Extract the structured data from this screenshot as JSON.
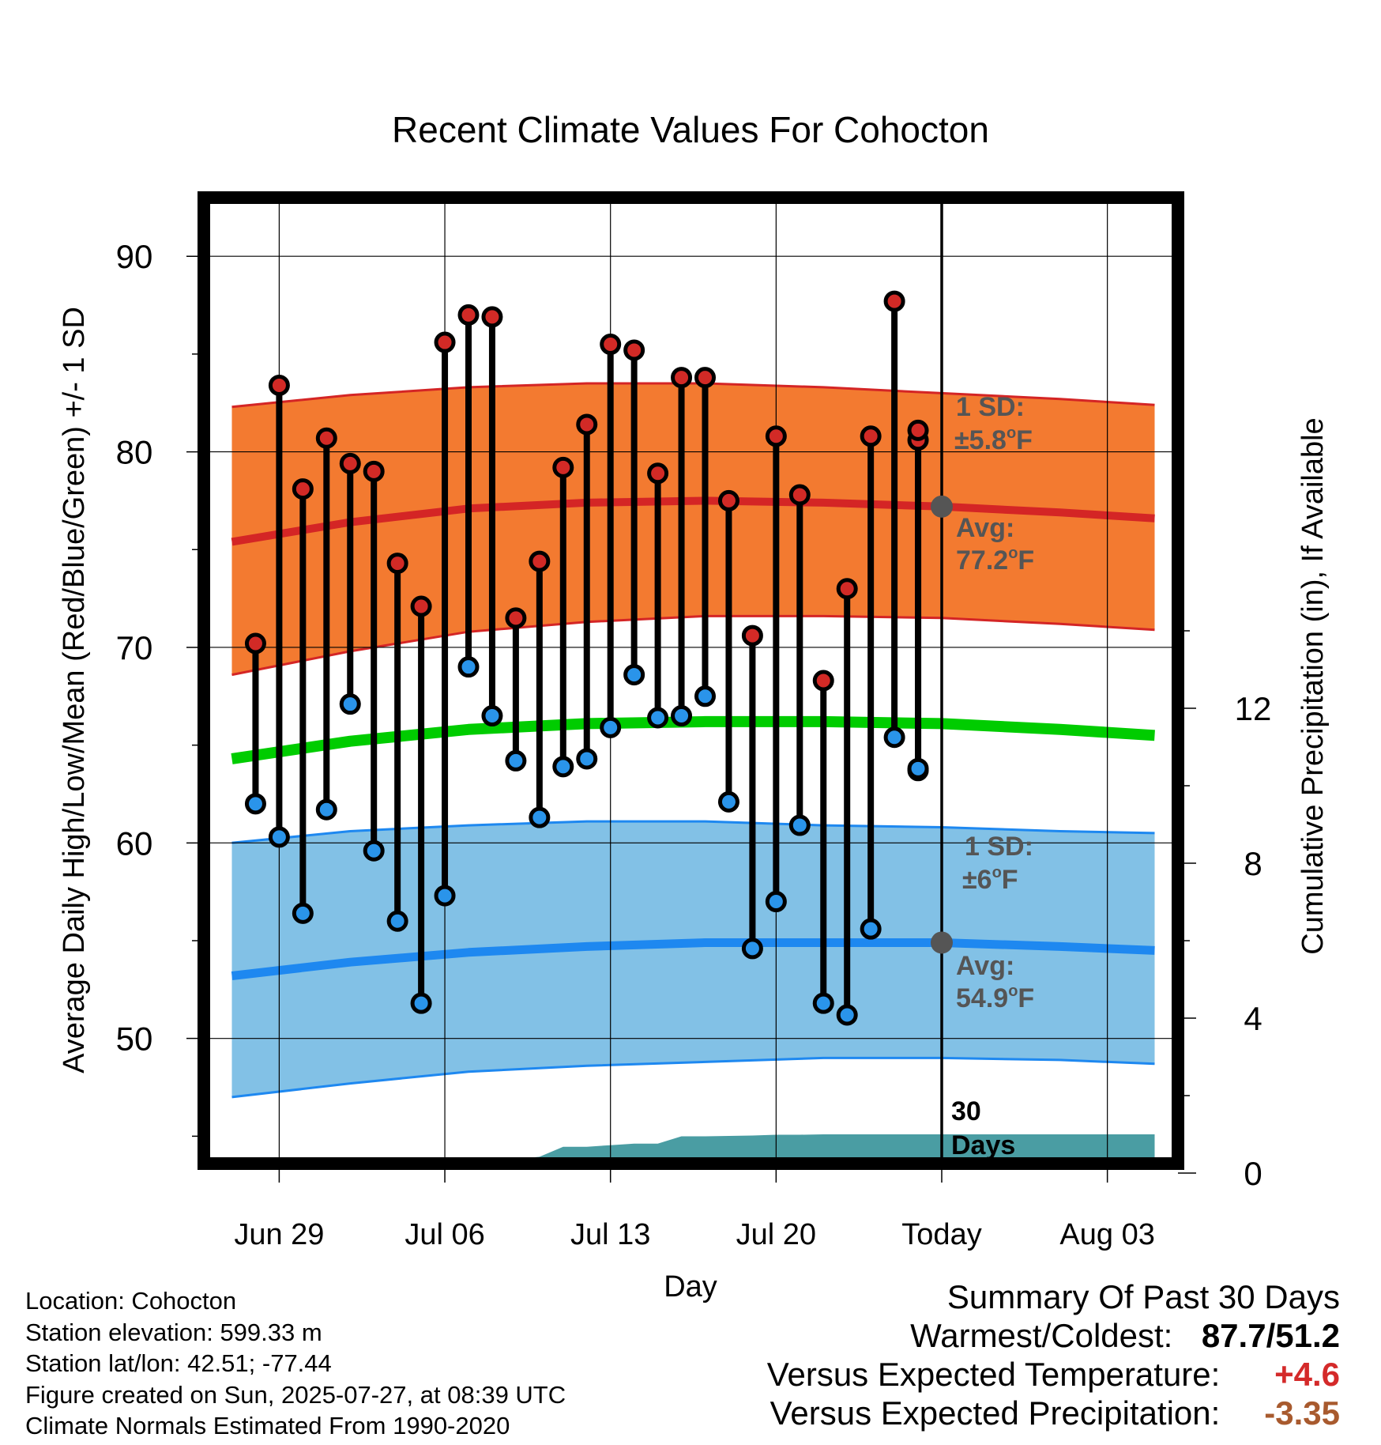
{
  "chart_data": {
    "type": "line",
    "title": "Recent Climate Values For Cohocton",
    "xlabel": "Day",
    "ylabel": "Average Daily High/Low/Mean (Red/Blue/Green) +/- 1 SD",
    "y2label": "Cumulative Precipitation (in), If Available",
    "ylim": [
      43.6,
      93
    ],
    "y2lim": [
      0,
      14
    ],
    "x_ticks": [
      "Jun 29",
      "Jul 06",
      "Jul 13",
      "Jul 20",
      "Today",
      "Aug 03"
    ],
    "y_ticks": [
      50,
      60,
      70,
      80,
      90
    ],
    "y2_ticks": [
      0,
      4,
      8,
      12
    ],
    "grid": true,
    "days_offset": [
      -29,
      -28,
      -27,
      -26,
      -25,
      -24,
      -23,
      -22,
      -21,
      -20,
      -19,
      -18,
      -17,
      -16,
      -15,
      -14,
      -13,
      -12,
      -11,
      -10,
      -9,
      -8,
      -7,
      -6,
      -5,
      -4,
      -3,
      -2,
      -1
    ],
    "observed_high": [
      70.2,
      83.4,
      78.1,
      80.7,
      79.4,
      79.0,
      74.3,
      72.1,
      85.6,
      87.0,
      86.9,
      71.5,
      74.4,
      79.2,
      81.4,
      85.5,
      85.2,
      78.9,
      83.8,
      83.8,
      77.5,
      70.6,
      80.8,
      77.8,
      68.3,
      73.0,
      80.8,
      87.7,
      80.6
    ],
    "observed_low": [
      62.0,
      60.3,
      56.4,
      61.7,
      67.1,
      59.6,
      56.0,
      51.8,
      57.3,
      69.0,
      66.5,
      64.2,
      61.3,
      63.9,
      64.3,
      65.9,
      68.6,
      66.4,
      66.5,
      67.5,
      62.1,
      54.6,
      57.0,
      60.9,
      51.8,
      51.2,
      55.6,
      65.4,
      63.7
    ],
    "observed_high_last": 81.1,
    "observed_low_last": 63.8,
    "normals_x": [
      -30,
      -25,
      -20,
      -15,
      -10,
      -5,
      0,
      5,
      9
    ],
    "normal_high_avg": [
      75.4,
      76.4,
      77.1,
      77.4,
      77.5,
      77.4,
      77.2,
      76.9,
      76.6
    ],
    "normal_high_upper": [
      82.3,
      82.9,
      83.3,
      83.5,
      83.5,
      83.3,
      83.0,
      82.7,
      82.4
    ],
    "normal_high_lower": [
      68.6,
      69.8,
      70.8,
      71.3,
      71.6,
      71.6,
      71.5,
      71.2,
      70.9
    ],
    "normal_mean": [
      64.3,
      65.2,
      65.8,
      66.1,
      66.2,
      66.2,
      66.1,
      65.8,
      65.5
    ],
    "normal_low_avg": [
      53.2,
      53.9,
      54.4,
      54.7,
      54.9,
      54.9,
      54.9,
      54.7,
      54.5
    ],
    "normal_low_upper": [
      60.0,
      60.6,
      60.9,
      61.1,
      61.1,
      60.9,
      60.8,
      60.6,
      60.5
    ],
    "normal_low_lower": [
      47.0,
      47.7,
      48.3,
      48.6,
      48.8,
      49.0,
      49.0,
      48.9,
      48.7
    ],
    "precip_x": [
      -22,
      -19,
      -18,
      -17,
      -16,
      -15,
      -14,
      -13,
      -12,
      -11,
      -10,
      -9,
      -8,
      -7,
      -6,
      -5,
      0,
      9
    ],
    "precip_cum": [
      0,
      0.3,
      0.36,
      0.42,
      0.68,
      0.68,
      0.72,
      0.76,
      0.76,
      0.95,
      0.95,
      0.96,
      0.97,
      0.99,
      0.99,
      1.0,
      1.0,
      1.0
    ],
    "annotations": {
      "high_sd_line1": "1 SD:",
      "high_sd_line2": "±5.8",
      "high_avg_line1": "Avg:",
      "high_avg_line2": "77.2",
      "low_sd_line1": "1 SD:",
      "low_sd_line2": "±6",
      "low_avg_line1": "Avg:",
      "low_avg_line2": "54.9",
      "degree": "o",
      "unit": "F",
      "days_line1": "30",
      "days_line2": "Days"
    },
    "colors": {
      "high_band": "#f37a30",
      "high_line": "#d42525",
      "low_band": "#82c1e6",
      "low_line": "#1e88f0",
      "mean_line": "#00cc00",
      "precip": "#4a9da3",
      "high_dot": "#d22a26",
      "low_dot": "#2a94ea",
      "annotation": "#555555"
    }
  },
  "info": {
    "location": "Location: Cohocton",
    "elevation": "Station elevation: 599.33 m",
    "latlon": "Station lat/lon: 42.51; -77.44",
    "created": "Figure created on Sun, 2025-07-27, at 08:39 UTC",
    "normals": "Climate Normals Estimated From 1990-2020"
  },
  "summary": {
    "title": "Summary Of Past 30 Days",
    "warm_label": "Warmest/Coldest:",
    "warm_value": "87.7/51.2",
    "temp_label": "Versus Expected Temperature:",
    "temp_value": "+4.6",
    "temp_color": "#d42a2a",
    "precip_label": "Versus Expected Precipitation:",
    "precip_value": "-3.35",
    "precip_color": "#a85a2e"
  }
}
